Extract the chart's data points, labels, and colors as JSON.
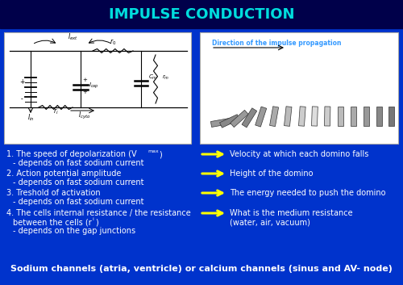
{
  "title": "IMPULSE CONDUCTION",
  "title_color": "#00DDDD",
  "bg_color": "#0033CC",
  "top_bg_color": "#00008B",
  "bottom_text": "Sodium channels (atria, ventricle) or calcium channels (sinus and AV- node)",
  "arrow_color": "#FFFF00",
  "text_color": "#FFFFFF",
  "domino_label": "Direction of the impulse propagation",
  "domino_label_color": "#3399FF",
  "item1_left1": "1. The speed of depolarization (V",
  "item1_sub": "max",
  "item1_left2": ")",
  "item1_left3": "   - depends on fast sodium current",
  "item1_right": "Velocity at which each domino falls",
  "item2_left1": "2. Action potential amplitude",
  "item2_left2": "   - depends on fast sodium current",
  "item2_right": "Height of the domino",
  "item3_left1": "3. Treshold of activation",
  "item3_left2": "   - depends on fast sodium current",
  "item3_right": "The energy needed to push the domino",
  "item4_left1": "4. The cells internal resistance / the resistance",
  "item4_left2": "   between the cells (r",
  "item4_sub": "i",
  "item4_left3": ")",
  "item4_left4": "   - depends on the gap junctions",
  "item4_right1": "What is the medium resistance",
  "item4_right2": "(water, air, vacuum)"
}
